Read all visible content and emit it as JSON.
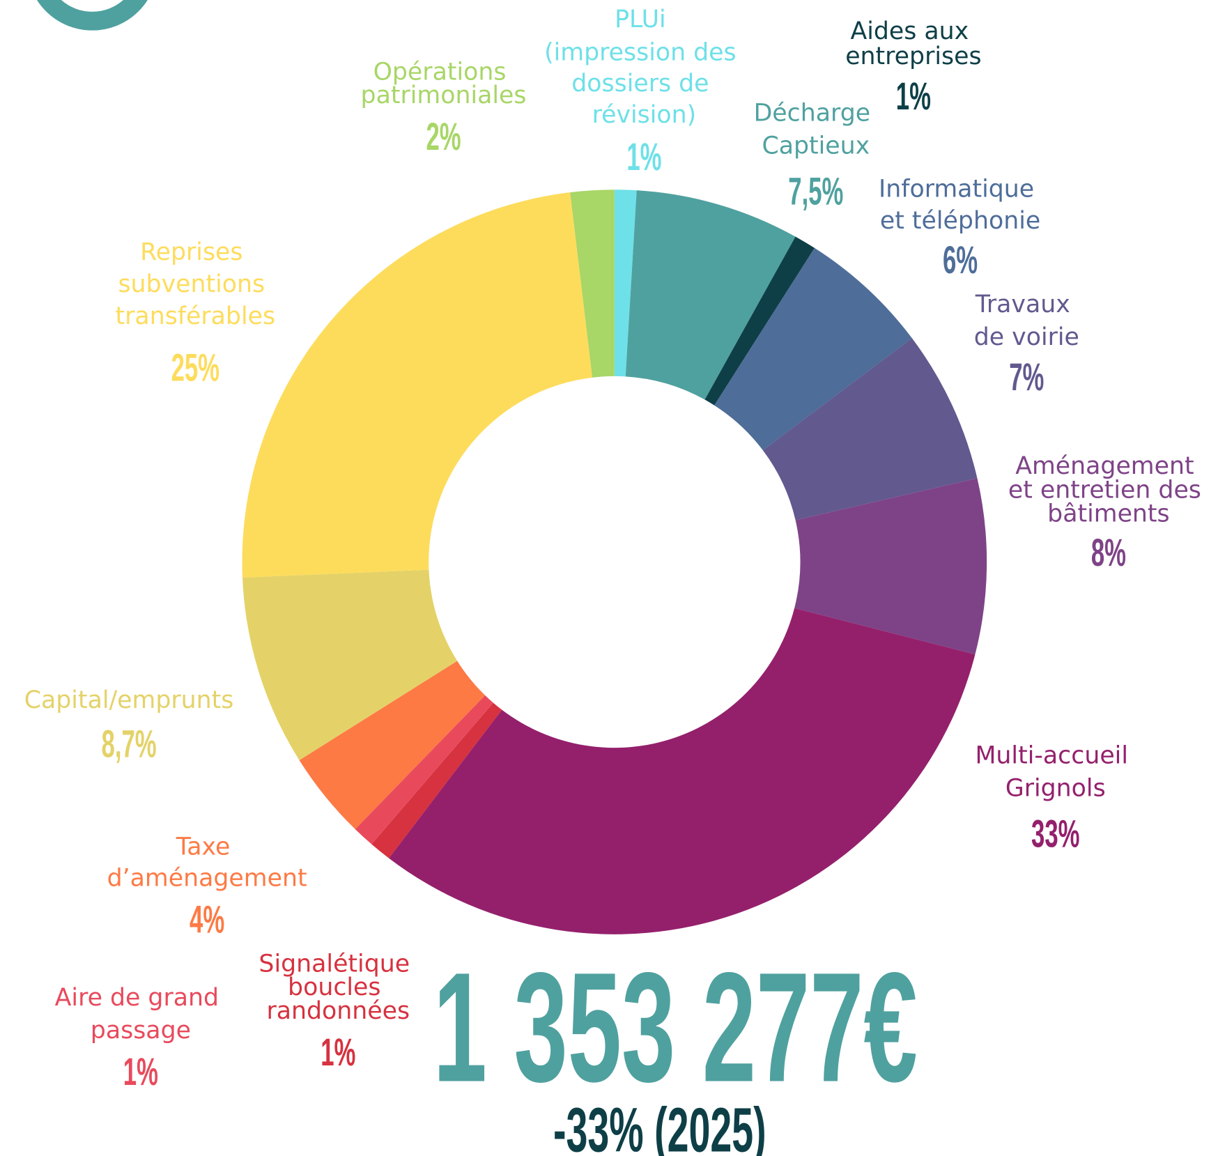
{
  "chart_data": {
    "type": "pie",
    "donut": true,
    "title": "1 353 277€",
    "subtitle": "-33% (2025)",
    "categories": [
      "PLUi (impression des dossiers de révision)",
      "Décharge Captieux",
      "Aides aux entreprises",
      "Informatique et téléphonie",
      "Travaux de voirie",
      "Aménagement et entretien des bâtiments",
      "Multi-accueil Grignols",
      "Signalétique boucles randonnées",
      "Aire de grand passage",
      "Taxe d’aménagement",
      "Capital/emprunts",
      "Reprises subventions transférables",
      "Opérations patrimoniales"
    ],
    "values": [
      1,
      7.5,
      1,
      6,
      7,
      8,
      33,
      1,
      1,
      4,
      8.7,
      25,
      2
    ],
    "value_labels": [
      "1%",
      "7,5%",
      "1%",
      "6%",
      "7%",
      "8%",
      "33%",
      "1%",
      "1%",
      "4%",
      "8,7%",
      "25%",
      "2%"
    ],
    "colors": [
      "#6ee0e8",
      "#4fa19f",
      "#0e3f47",
      "#4e6d99",
      "#62598f",
      "#7e4387",
      "#94206c",
      "#d6323f",
      "#e84a5c",
      "#fd7a45",
      "#e4d268",
      "#fddc5c",
      "#a8d667"
    ]
  }
}
